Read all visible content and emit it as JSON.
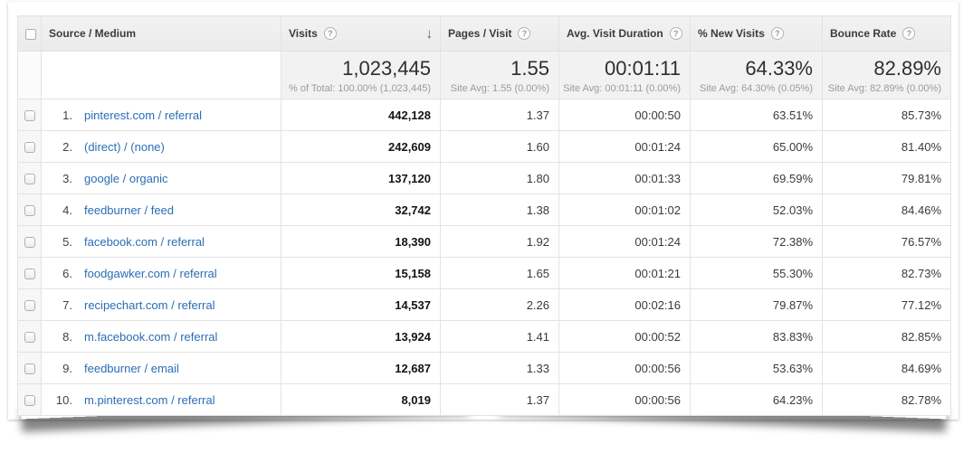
{
  "table": {
    "columns": [
      {
        "label": "Source / Medium",
        "help": false,
        "sorted": false
      },
      {
        "label": "Visits",
        "help": true,
        "sorted": true
      },
      {
        "label": "Pages / Visit",
        "help": true,
        "sorted": false
      },
      {
        "label": "Avg. Visit Duration",
        "help": true,
        "sorted": false
      },
      {
        "label": "% New Visits",
        "help": true,
        "sorted": false
      },
      {
        "label": "Bounce Rate",
        "help": true,
        "sorted": false
      }
    ],
    "summary": {
      "visits": {
        "value": "1,023,445",
        "sub": "% of Total: 100.00% (1,023,445)"
      },
      "pages": {
        "value": "1.55",
        "sub": "Site Avg: 1.55 (0.00%)"
      },
      "duration": {
        "value": "00:01:11",
        "sub": "Site Avg: 00:01:11 (0.00%)"
      },
      "new_visits": {
        "value": "64.33%",
        "sub": "Site Avg: 64.30% (0.05%)"
      },
      "bounce_rate": {
        "value": "82.89%",
        "sub": "Site Avg: 82.89% (0.00%)"
      }
    },
    "rows": [
      {
        "rank": "1.",
        "source": "pinterest.com / referral",
        "visits": "442,128",
        "pages": "1.37",
        "duration": "00:00:50",
        "new_visits": "63.51%",
        "bounce": "85.73%"
      },
      {
        "rank": "2.",
        "source": "(direct) / (none)",
        "visits": "242,609",
        "pages": "1.60",
        "duration": "00:01:24",
        "new_visits": "65.00%",
        "bounce": "81.40%"
      },
      {
        "rank": "3.",
        "source": "google / organic",
        "visits": "137,120",
        "pages": "1.80",
        "duration": "00:01:33",
        "new_visits": "69.59%",
        "bounce": "79.81%"
      },
      {
        "rank": "4.",
        "source": "feedburner / feed",
        "visits": "32,742",
        "pages": "1.38",
        "duration": "00:01:02",
        "new_visits": "52.03%",
        "bounce": "84.46%"
      },
      {
        "rank": "5.",
        "source": "facebook.com / referral",
        "visits": "18,390",
        "pages": "1.92",
        "duration": "00:01:24",
        "new_visits": "72.38%",
        "bounce": "76.57%"
      },
      {
        "rank": "6.",
        "source": "foodgawker.com / referral",
        "visits": "15,158",
        "pages": "1.65",
        "duration": "00:01:21",
        "new_visits": "55.30%",
        "bounce": "82.73%"
      },
      {
        "rank": "7.",
        "source": "recipechart.com / referral",
        "visits": "14,537",
        "pages": "2.26",
        "duration": "00:02:16",
        "new_visits": "79.87%",
        "bounce": "77.12%"
      },
      {
        "rank": "8.",
        "source": "m.facebook.com / referral",
        "visits": "13,924",
        "pages": "1.41",
        "duration": "00:00:52",
        "new_visits": "83.83%",
        "bounce": "82.85%"
      },
      {
        "rank": "9.",
        "source": "feedburner / email",
        "visits": "12,687",
        "pages": "1.33",
        "duration": "00:00:56",
        "new_visits": "53.63%",
        "bounce": "84.69%"
      },
      {
        "rank": "10.",
        "source": "m.pinterest.com / referral",
        "visits": "8,019",
        "pages": "1.37",
        "duration": "00:00:56",
        "new_visits": "64.23%",
        "bounce": "82.78%"
      }
    ]
  },
  "icons": {
    "help": "?",
    "sort_desc": "↓"
  },
  "colors": {
    "link": "#2a6db5",
    "header_bg": "#eeeeee",
    "summary_bg": "#f2f2f2",
    "border": "#e3e3e3"
  }
}
